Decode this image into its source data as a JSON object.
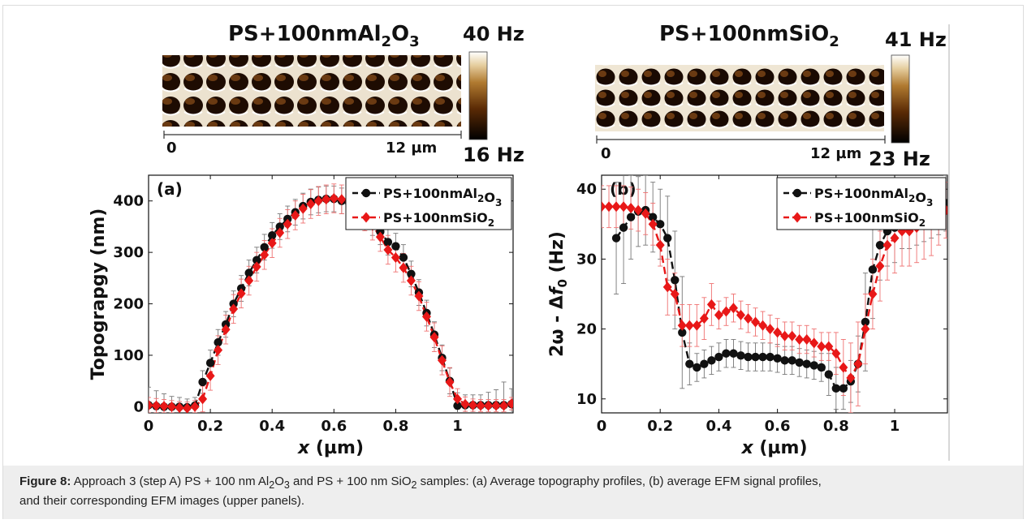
{
  "caption": {
    "figure_label": "Figure 8:",
    "text_parts": [
      "Approach 3 (step A) PS + 100 nm Al",
      "2",
      "O",
      "3",
      " and PS + 100 nm SiO",
      "2",
      " samples: (a) Average topography profiles, (b) average EFM signal profiles,",
      "and their corresponding EFM images (upper panels)."
    ]
  },
  "images": [
    {
      "title_main": "PS+100nmAl",
      "title_sub1": "2",
      "title_mid": "O",
      "title_sub2": "3",
      "colorbar_max": "40 Hz",
      "colorbar_min": "16 Hz",
      "scale_start": "0",
      "scale_end": "12 µm"
    },
    {
      "title_main": "PS+100nmSiO",
      "title_sub1": "2",
      "colorbar_max": "41 Hz",
      "colorbar_min": "23 Hz",
      "scale_start": "0",
      "scale_end": "12 µm"
    }
  ],
  "colors": {
    "al2o3": "#111111",
    "sio2": "#e81818",
    "errbar_al2o3": "#777777",
    "errbar_sio2": "#ef7070"
  },
  "chart_data": [
    {
      "type": "line",
      "panel_label": "(a)",
      "ylabel": "Topograpgy (nm)",
      "xlabel_main": "x",
      "xlabel_unit": " (µm)",
      "xlim": [
        0,
        1.18
      ],
      "ylim": [
        -12,
        450
      ],
      "xticks": [
        0,
        0.2,
        0.4,
        0.6,
        0.8,
        1
      ],
      "xtick_labels": [
        "0",
        "0.2",
        "0.4",
        "0.6",
        "0.8",
        "1"
      ],
      "yticks": [
        0,
        100,
        200,
        300,
        400
      ],
      "ytick_labels": [
        "0",
        "100",
        "200",
        "300",
        "400"
      ],
      "legend": {
        "position": "top-right",
        "entries": [
          "PS+100nmAl2O3",
          "PS+100nmSiO2"
        ]
      },
      "series": [
        {
          "name": "PS+100nmAl2O3",
          "marker": "circle",
          "x": [
            0,
            0.025,
            0.05,
            0.075,
            0.1,
            0.125,
            0.15,
            0.175,
            0.2,
            0.225,
            0.25,
            0.275,
            0.3,
            0.325,
            0.35,
            0.375,
            0.4,
            0.425,
            0.45,
            0.475,
            0.5,
            0.525,
            0.55,
            0.575,
            0.6,
            0.625,
            0.65,
            0.675,
            0.7,
            0.725,
            0.75,
            0.775,
            0.8,
            0.825,
            0.85,
            0.875,
            0.9,
            0.925,
            0.95,
            0.975,
            1.0,
            1.025,
            1.05,
            1.075,
            1.1,
            1.125,
            1.15,
            1.175
          ],
          "y": [
            3,
            1,
            0,
            0,
            0,
            -1,
            2,
            48,
            85,
            125,
            160,
            200,
            230,
            260,
            285,
            310,
            333,
            350,
            365,
            378,
            390,
            398,
            402,
            404,
            404,
            400,
            395,
            385,
            372,
            358,
            340,
            320,
            312,
            290,
            258,
            222,
            182,
            140,
            95,
            50,
            2,
            3,
            3,
            3,
            3,
            3,
            3,
            5
          ],
          "err": [
            35,
            30,
            25,
            20,
            18,
            16,
            16,
            22,
            25,
            25,
            25,
            25,
            25,
            25,
            25,
            25,
            25,
            25,
            25,
            25,
            25,
            25,
            25,
            25,
            25,
            25,
            25,
            25,
            25,
            25,
            25,
            25,
            25,
            25,
            25,
            25,
            25,
            25,
            25,
            25,
            25,
            20,
            20,
            20,
            25,
            30,
            45,
            30
          ]
        },
        {
          "name": "PS+100nmSiO2",
          "marker": "diamond",
          "x": [
            0,
            0.025,
            0.05,
            0.075,
            0.1,
            0.125,
            0.15,
            0.175,
            0.2,
            0.225,
            0.25,
            0.275,
            0.3,
            0.325,
            0.35,
            0.375,
            0.4,
            0.425,
            0.45,
            0.475,
            0.5,
            0.525,
            0.55,
            0.575,
            0.6,
            0.625,
            0.65,
            0.675,
            0.7,
            0.725,
            0.75,
            0.775,
            0.8,
            0.825,
            0.85,
            0.875,
            0.9,
            0.925,
            0.95,
            0.975,
            1.0,
            1.025,
            1.05,
            1.075,
            1.1,
            1.125,
            1.15,
            1.175
          ],
          "y": [
            3,
            2,
            1,
            0,
            -2,
            -3,
            0,
            15,
            60,
            110,
            150,
            190,
            220,
            245,
            272,
            295,
            318,
            338,
            355,
            372,
            385,
            394,
            400,
            403,
            405,
            403,
            398,
            385,
            370,
            352,
            330,
            305,
            290,
            270,
            245,
            215,
            175,
            135,
            90,
            48,
            15,
            5,
            3,
            2,
            2,
            2,
            2,
            6
          ],
          "err": [
            15,
            14,
            13,
            12,
            12,
            12,
            12,
            25,
            28,
            28,
            28,
            28,
            28,
            28,
            28,
            28,
            28,
            28,
            28,
            28,
            28,
            28,
            28,
            28,
            28,
            28,
            28,
            28,
            28,
            28,
            28,
            28,
            28,
            28,
            28,
            28,
            28,
            28,
            28,
            28,
            20,
            14,
            12,
            12,
            12,
            12,
            12,
            12
          ]
        }
      ]
    },
    {
      "type": "line",
      "panel_label": "(b)",
      "ylabel_a": "2ω - Δ",
      "ylabel_f": "f",
      "ylabel_sub": "0",
      "ylabel_unit": " (Hz)",
      "xlabel_main": "x",
      "xlabel_unit": " (µm)",
      "xlim": [
        0,
        1.18
      ],
      "ylim": [
        8,
        42
      ],
      "xticks": [
        0,
        0.2,
        0.4,
        0.6,
        0.8,
        1
      ],
      "xtick_labels": [
        "0",
        "0.2",
        "0.4",
        "0.6",
        "0.8",
        "1"
      ],
      "yticks": [
        10,
        20,
        30,
        40
      ],
      "ytick_labels": [
        "10",
        "20",
        "30",
        "40"
      ],
      "legend": {
        "position": "top-right",
        "entries": [
          "PS+100nmAl2O3",
          "PS+100nmSiO2"
        ]
      },
      "series": [
        {
          "name": "PS+100nmAl2O3",
          "marker": "circle",
          "x": [
            0.05,
            0.075,
            0.1,
            0.125,
            0.15,
            0.175,
            0.2,
            0.225,
            0.25,
            0.275,
            0.3,
            0.325,
            0.35,
            0.375,
            0.4,
            0.425,
            0.45,
            0.475,
            0.5,
            0.525,
            0.55,
            0.575,
            0.6,
            0.625,
            0.65,
            0.675,
            0.7,
            0.725,
            0.75,
            0.775,
            0.8,
            0.825,
            0.85,
            0.875,
            0.9,
            0.925,
            0.95,
            0.975,
            1.0,
            1.025,
            1.05,
            1.075,
            1.1,
            1.125,
            1.15,
            1.175
          ],
          "y": [
            33,
            34.5,
            36,
            36.8,
            37,
            36,
            35,
            33,
            27,
            19.5,
            15,
            14.5,
            15,
            15.5,
            16,
            16.5,
            16.5,
            16.2,
            16,
            16,
            16,
            16,
            15.8,
            15.5,
            15.5,
            15.2,
            15,
            14.8,
            14.5,
            13.5,
            11.5,
            11.5,
            12.5,
            15,
            21,
            28.5,
            32,
            34,
            34.5,
            35.5,
            35.5,
            36,
            36.5,
            37,
            37.5,
            38
          ],
          "err": [
            8,
            8,
            6,
            5,
            5,
            5,
            5,
            6,
            7,
            8,
            3,
            2,
            2,
            2,
            2,
            2,
            2,
            2,
            2,
            2,
            2,
            2,
            2,
            2,
            2,
            2,
            2,
            2,
            2,
            3,
            3,
            3,
            3,
            4,
            7,
            7,
            5,
            5,
            5,
            4,
            4,
            4,
            4,
            4,
            4,
            4
          ]
        },
        {
          "name": "PS+100nmSiO2",
          "marker": "diamond",
          "x": [
            0,
            0.025,
            0.05,
            0.075,
            0.1,
            0.125,
            0.15,
            0.175,
            0.2,
            0.225,
            0.25,
            0.275,
            0.3,
            0.325,
            0.35,
            0.375,
            0.4,
            0.425,
            0.45,
            0.475,
            0.5,
            0.525,
            0.55,
            0.575,
            0.6,
            0.625,
            0.65,
            0.675,
            0.7,
            0.725,
            0.75,
            0.775,
            0.8,
            0.825,
            0.85,
            0.875,
            0.9,
            0.925,
            0.95,
            0.975,
            1.0,
            1.025,
            1.05,
            1.075,
            1.1,
            1.125,
            1.15,
            1.175
          ],
          "y": [
            37.5,
            37.5,
            37.5,
            37.5,
            37.3,
            37,
            36.5,
            35,
            32,
            26,
            25,
            20.5,
            20.5,
            20.5,
            21.5,
            23.5,
            22,
            22.5,
            23,
            22,
            21.5,
            21,
            20.5,
            20,
            19.5,
            19,
            19,
            18.5,
            18.5,
            18,
            17.5,
            17.5,
            16.5,
            14.5,
            13,
            15,
            20,
            25,
            29,
            32,
            33,
            34,
            34,
            34.5,
            35,
            35.5,
            36,
            37
          ],
          "err": [
            3,
            3,
            3,
            3,
            3,
            3,
            3,
            3,
            3,
            4,
            3,
            3,
            3,
            3,
            3,
            3,
            2,
            2,
            2,
            2,
            2,
            2,
            2,
            2,
            2,
            2,
            2,
            2,
            2,
            2,
            2,
            2,
            3,
            4,
            5,
            6,
            5,
            5,
            5,
            5,
            5,
            5,
            5,
            5,
            5,
            5,
            4,
            4
          ]
        }
      ]
    }
  ]
}
